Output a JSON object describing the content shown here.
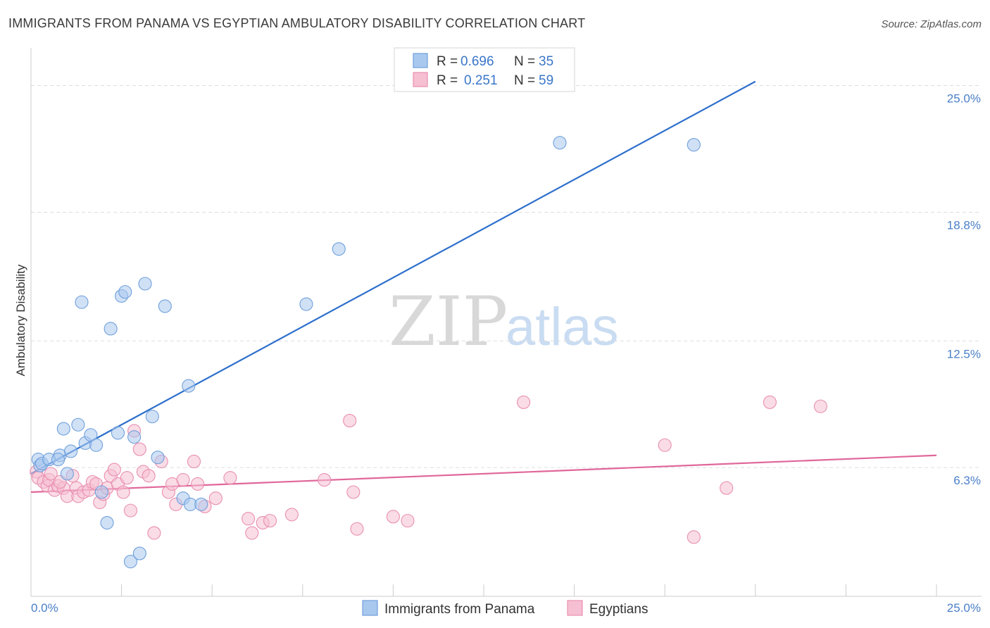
{
  "header": {
    "title": "IMMIGRANTS FROM PANAMA VS EGYPTIAN AMBULATORY DISABILITY CORRELATION CHART",
    "source": "Source: ZipAtlas.com"
  },
  "watermark": {
    "zip": "ZIP",
    "atlas": "atlas"
  },
  "legend": {
    "r_label": "R =",
    "n_label": "N =",
    "entries": [
      {
        "r": "0.696",
        "n": "35"
      },
      {
        "r": "0.251",
        "n": "59"
      }
    ]
  },
  "colors": {
    "panama_fill": "#a9c8ee",
    "panama_stroke": "#6f9fdb",
    "panama_line": "#2d6fcc",
    "egypt_fill": "#f6bfd2",
    "egypt_stroke": "#e88fb0",
    "egypt_line": "#e0679a",
    "tick_label": "#4a7fc8"
  },
  "chart_data": {
    "type": "scatter",
    "xlabel": "",
    "ylabel": "Ambulatory Disability",
    "xlim": [
      0,
      25
    ],
    "ylim": [
      0,
      26.5
    ],
    "y_ticks": [
      6.3,
      12.5,
      18.8,
      25.0
    ],
    "y_tick_labels": [
      "6.3%",
      "12.5%",
      "18.8%",
      "25.0%"
    ],
    "x_tick_labels": [
      "0.0%",
      "25.0%"
    ],
    "grid": "horizontal dashed",
    "legend_position": "top-center",
    "series": [
      {
        "name": "Immigrants from Panama",
        "color": "#6f9fdb",
        "trend": {
          "x": [
            0,
            20
          ],
          "y": [
            6.0,
            25.2
          ]
        },
        "points": [
          [
            0.2,
            6.7
          ],
          [
            0.25,
            6.4
          ],
          [
            0.3,
            6.5
          ],
          [
            0.5,
            6.7
          ],
          [
            0.8,
            6.9
          ],
          [
            0.75,
            6.7
          ],
          [
            0.9,
            8.2
          ],
          [
            1.0,
            6.0
          ],
          [
            1.1,
            7.1
          ],
          [
            1.3,
            8.4
          ],
          [
            1.4,
            14.4
          ],
          [
            1.5,
            7.5
          ],
          [
            1.65,
            7.9
          ],
          [
            1.8,
            7.4
          ],
          [
            1.95,
            5.1
          ],
          [
            2.1,
            3.6
          ],
          [
            2.2,
            13.1
          ],
          [
            2.4,
            8.0
          ],
          [
            2.5,
            14.7
          ],
          [
            2.6,
            14.9
          ],
          [
            2.75,
            1.7
          ],
          [
            2.85,
            7.8
          ],
          [
            3.0,
            2.1
          ],
          [
            3.15,
            15.3
          ],
          [
            3.35,
            8.8
          ],
          [
            3.5,
            6.8
          ],
          [
            3.7,
            14.2
          ],
          [
            4.2,
            4.8
          ],
          [
            4.35,
            10.3
          ],
          [
            4.4,
            4.5
          ],
          [
            4.7,
            4.5
          ],
          [
            7.6,
            14.3
          ],
          [
            8.5,
            17.0
          ],
          [
            14.6,
            22.2
          ],
          [
            18.3,
            22.1
          ]
        ]
      },
      {
        "name": "Egyptians",
        "color": "#e88fb0",
        "trend": {
          "x": [
            0,
            25
          ],
          "y": [
            5.1,
            6.9
          ]
        },
        "points": [
          [
            0.15,
            6.1
          ],
          [
            0.2,
            5.8
          ],
          [
            0.35,
            5.6
          ],
          [
            0.45,
            5.4
          ],
          [
            0.5,
            5.7
          ],
          [
            0.55,
            6.0
          ],
          [
            0.65,
            5.2
          ],
          [
            0.75,
            5.4
          ],
          [
            0.9,
            5.3
          ],
          [
            1.0,
            4.9
          ],
          [
            1.15,
            5.9
          ],
          [
            1.25,
            5.3
          ],
          [
            1.3,
            4.9
          ],
          [
            1.45,
            5.1
          ],
          [
            1.6,
            5.2
          ],
          [
            1.7,
            5.6
          ],
          [
            1.8,
            5.5
          ],
          [
            1.9,
            4.6
          ],
          [
            2.0,
            5.0
          ],
          [
            2.1,
            5.3
          ],
          [
            2.2,
            5.9
          ],
          [
            2.3,
            6.2
          ],
          [
            2.4,
            5.5
          ],
          [
            2.55,
            5.1
          ],
          [
            2.65,
            5.8
          ],
          [
            2.75,
            4.2
          ],
          [
            2.85,
            8.1
          ],
          [
            3.0,
            7.2
          ],
          [
            3.1,
            6.1
          ],
          [
            3.25,
            5.9
          ],
          [
            3.4,
            3.1
          ],
          [
            3.6,
            6.6
          ],
          [
            3.8,
            5.1
          ],
          [
            3.9,
            5.5
          ],
          [
            4.0,
            4.5
          ],
          [
            4.2,
            5.7
          ],
          [
            4.5,
            6.6
          ],
          [
            4.6,
            5.5
          ],
          [
            4.8,
            4.4
          ],
          [
            5.1,
            4.8
          ],
          [
            5.5,
            5.8
          ],
          [
            6.0,
            3.8
          ],
          [
            6.1,
            3.1
          ],
          [
            6.4,
            3.6
          ],
          [
            6.6,
            3.7
          ],
          [
            7.2,
            4.0
          ],
          [
            8.1,
            5.7
          ],
          [
            8.8,
            8.6
          ],
          [
            8.9,
            5.1
          ],
          [
            9.0,
            3.3
          ],
          [
            10.0,
            3.9
          ],
          [
            10.4,
            3.7
          ],
          [
            13.6,
            9.5
          ],
          [
            17.5,
            7.4
          ],
          [
            18.3,
            2.9
          ],
          [
            19.2,
            5.3
          ],
          [
            20.4,
            9.5
          ],
          [
            21.8,
            9.3
          ],
          [
            0.8,
            5.6
          ]
        ]
      }
    ]
  }
}
